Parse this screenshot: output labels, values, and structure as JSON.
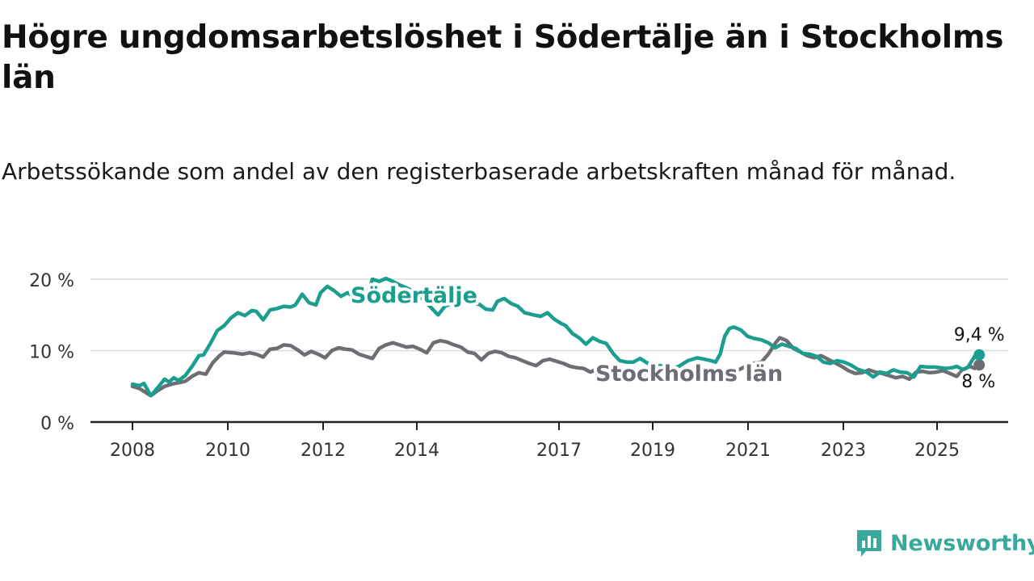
{
  "title": "Högre ungdomsarbetslöshet i Södertälje än i Stockholms län",
  "subtitle": "Arbetssökande som andel av den registerbaserade arbetskraften månad för månad.",
  "brand": {
    "name": "Newsworthy",
    "icon": "newsworthy-logo-icon",
    "color": "#3aa89a"
  },
  "chart_data": {
    "type": "line",
    "ylim": [
      0,
      20
    ],
    "xlim": [
      2008,
      2025.9
    ],
    "y_ticks": [
      {
        "value": 0,
        "label": "0 %"
      },
      {
        "value": 10,
        "label": "10 %"
      },
      {
        "value": 20,
        "label": "20 %"
      }
    ],
    "x_ticks": [
      {
        "value": 2008,
        "label": "2008"
      },
      {
        "value": 2010,
        "label": "2010"
      },
      {
        "value": 2012,
        "label": "2012"
      },
      {
        "value": 2014,
        "label": "2014"
      },
      {
        "value": 2017,
        "label": "2017"
      },
      {
        "value": 2019,
        "label": "2019"
      },
      {
        "value": 2021,
        "label": "2021"
      },
      {
        "value": 2023,
        "label": "2023"
      },
      {
        "value": 2025,
        "label": "2025"
      }
    ],
    "grid": true,
    "series": [
      {
        "name": "Södertälje",
        "color": "#1b9e8f",
        "end_label": "9,4 %",
        "points": [
          [
            2008.0,
            5.3
          ],
          [
            2008.15,
            5.1
          ],
          [
            2008.25,
            5.4
          ],
          [
            2008.4,
            3.7
          ],
          [
            2008.55,
            4.8
          ],
          [
            2008.7,
            6.0
          ],
          [
            2008.8,
            5.6
          ],
          [
            2008.9,
            6.2
          ],
          [
            2009.0,
            5.8
          ],
          [
            2009.15,
            6.5
          ],
          [
            2009.3,
            7.8
          ],
          [
            2009.45,
            9.3
          ],
          [
            2009.55,
            9.4
          ],
          [
            2009.7,
            11.0
          ],
          [
            2009.85,
            12.8
          ],
          [
            2010.0,
            13.5
          ],
          [
            2010.15,
            14.6
          ],
          [
            2010.3,
            15.3
          ],
          [
            2010.45,
            14.9
          ],
          [
            2010.6,
            15.6
          ],
          [
            2010.7,
            15.5
          ],
          [
            2010.85,
            14.3
          ],
          [
            2011.0,
            15.7
          ],
          [
            2011.15,
            15.9
          ],
          [
            2011.3,
            16.2
          ],
          [
            2011.45,
            16.1
          ],
          [
            2011.55,
            16.4
          ],
          [
            2011.7,
            17.9
          ],
          [
            2011.85,
            16.7
          ],
          [
            2012.0,
            16.4
          ],
          [
            2012.1,
            18.1
          ],
          [
            2012.25,
            19.0
          ],
          [
            2012.4,
            18.4
          ],
          [
            2012.55,
            17.6
          ],
          [
            2012.7,
            18.1
          ],
          [
            2012.85,
            17.5
          ],
          [
            2013.0,
            18.4
          ],
          [
            2013.1,
            17.2
          ],
          [
            2013.25,
            20.0
          ],
          [
            2013.4,
            19.7
          ],
          [
            2013.55,
            20.1
          ],
          [
            2013.7,
            19.7
          ],
          [
            2013.85,
            19.2
          ],
          [
            2014.0,
            18.8
          ],
          [
            2014.2,
            18.2
          ],
          [
            2014.4,
            17.0
          ],
          [
            2014.55,
            16.0
          ],
          [
            2014.7,
            15.0
          ],
          [
            2014.85,
            16.2
          ],
          [
            2015.0,
            16.6
          ],
          [
            2015.15,
            16.9
          ],
          [
            2015.3,
            17.4
          ],
          [
            2015.45,
            16.6
          ],
          [
            2015.6,
            16.5
          ],
          [
            2015.75,
            15.8
          ],
          [
            2015.9,
            15.7
          ],
          [
            2016.0,
            16.9
          ],
          [
            2016.15,
            17.3
          ],
          [
            2016.3,
            16.6
          ],
          [
            2016.45,
            16.2
          ],
          [
            2016.6,
            15.3
          ],
          [
            2016.8,
            15.0
          ],
          [
            2016.95,
            14.8
          ],
          [
            2017.1,
            15.3
          ],
          [
            2017.25,
            14.4
          ],
          [
            2017.4,
            13.8
          ],
          [
            2017.5,
            13.5
          ],
          [
            2017.65,
            12.4
          ],
          [
            2017.8,
            11.8
          ],
          [
            2017.95,
            10.9
          ],
          [
            2018.1,
            11.8
          ],
          [
            2018.25,
            11.3
          ],
          [
            2018.4,
            11.0
          ],
          [
            2018.55,
            9.6
          ],
          [
            2018.7,
            8.6
          ],
          [
            2018.85,
            8.4
          ],
          [
            2019.0,
            8.4
          ],
          [
            2019.15,
            8.9
          ],
          [
            2019.3,
            8.3
          ],
          [
            2019.45,
            7.8
          ],
          [
            2019.6,
            7.9
          ],
          [
            2019.8,
            7.4
          ],
          [
            2020.0,
            7.8
          ],
          [
            2020.2,
            8.6
          ],
          [
            2020.4,
            9.0
          ],
          [
            2020.55,
            8.8
          ],
          [
            2020.7,
            8.6
          ],
          [
            2020.8,
            8.4
          ],
          [
            2020.9,
            9.5
          ],
          [
            2021.0,
            12.0
          ],
          [
            2021.1,
            13.1
          ],
          [
            2021.2,
            13.3
          ],
          [
            2021.35,
            12.9
          ],
          [
            2021.5,
            12.0
          ],
          [
            2021.65,
            11.7
          ],
          [
            2021.8,
            11.5
          ],
          [
            2021.95,
            11.1
          ],
          [
            2022.1,
            10.4
          ],
          [
            2022.25,
            10.9
          ],
          [
            2022.4,
            10.6
          ],
          [
            2022.55,
            10.3
          ],
          [
            2022.7,
            9.6
          ],
          [
            2022.85,
            9.5
          ],
          [
            2023.0,
            9.2
          ],
          [
            2023.15,
            8.4
          ],
          [
            2023.3,
            8.2
          ],
          [
            2023.45,
            8.6
          ],
          [
            2023.6,
            8.4
          ],
          [
            2023.75,
            8.0
          ],
          [
            2023.9,
            7.4
          ],
          [
            2024.1,
            7.0
          ],
          [
            2024.25,
            6.3
          ],
          [
            2024.4,
            7.0
          ],
          [
            2024.55,
            6.8
          ],
          [
            2024.7,
            7.3
          ],
          [
            2024.85,
            7.0
          ],
          [
            2025.0,
            6.9
          ],
          [
            2025.15,
            6.3
          ],
          [
            2025.3,
            7.8
          ],
          [
            2025.45,
            7.7
          ],
          [
            2025.6,
            7.7
          ],
          [
            2025.75,
            7.6
          ],
          [
            2025.85,
            7.5
          ],
          [
            2026.0,
            7.6
          ],
          [
            2026.1,
            7.8
          ],
          [
            2026.25,
            7.3
          ],
          [
            2026.35,
            7.7
          ],
          [
            2026.5,
            9.2
          ],
          [
            2026.6,
            9.4
          ]
        ]
      },
      {
        "name": "Stockholms län",
        "color": "#6d6d73",
        "end_label": "8 %",
        "points": [
          [
            2008.0,
            5.0
          ],
          [
            2008.15,
            4.7
          ],
          [
            2008.25,
            4.3
          ],
          [
            2008.4,
            3.7
          ],
          [
            2008.55,
            4.4
          ],
          [
            2008.7,
            5.0
          ],
          [
            2008.85,
            5.3
          ],
          [
            2009.0,
            5.5
          ],
          [
            2009.15,
            5.7
          ],
          [
            2009.3,
            6.4
          ],
          [
            2009.45,
            6.9
          ],
          [
            2009.6,
            6.7
          ],
          [
            2009.75,
            8.3
          ],
          [
            2009.9,
            9.3
          ],
          [
            2010.0,
            9.8
          ],
          [
            2010.2,
            9.7
          ],
          [
            2010.4,
            9.5
          ],
          [
            2010.55,
            9.7
          ],
          [
            2010.7,
            9.5
          ],
          [
            2010.85,
            9.1
          ],
          [
            2011.0,
            10.2
          ],
          [
            2011.15,
            10.3
          ],
          [
            2011.3,
            10.8
          ],
          [
            2011.45,
            10.7
          ],
          [
            2011.6,
            10.1
          ],
          [
            2011.75,
            9.4
          ],
          [
            2011.9,
            9.9
          ],
          [
            2012.05,
            9.5
          ],
          [
            2012.2,
            9.0
          ],
          [
            2012.35,
            10.0
          ],
          [
            2012.5,
            10.4
          ],
          [
            2012.65,
            10.2
          ],
          [
            2012.8,
            10.1
          ],
          [
            2012.95,
            9.5
          ],
          [
            2013.1,
            9.2
          ],
          [
            2013.25,
            8.9
          ],
          [
            2013.4,
            10.3
          ],
          [
            2013.55,
            10.8
          ],
          [
            2013.7,
            11.1
          ],
          [
            2013.85,
            10.8
          ],
          [
            2014.0,
            10.5
          ],
          [
            2014.15,
            10.6
          ],
          [
            2014.3,
            10.2
          ],
          [
            2014.45,
            9.7
          ],
          [
            2014.6,
            11.1
          ],
          [
            2014.75,
            11.4
          ],
          [
            2014.9,
            11.2
          ],
          [
            2015.05,
            10.8
          ],
          [
            2015.2,
            10.5
          ],
          [
            2015.35,
            9.8
          ],
          [
            2015.5,
            9.6
          ],
          [
            2015.65,
            8.7
          ],
          [
            2015.8,
            9.6
          ],
          [
            2015.95,
            9.9
          ],
          [
            2016.1,
            9.7
          ],
          [
            2016.25,
            9.2
          ],
          [
            2016.4,
            9.0
          ],
          [
            2016.55,
            8.6
          ],
          [
            2016.7,
            8.2
          ],
          [
            2016.85,
            7.9
          ],
          [
            2017.0,
            8.6
          ],
          [
            2017.15,
            8.8
          ],
          [
            2017.3,
            8.5
          ],
          [
            2017.45,
            8.2
          ],
          [
            2017.6,
            7.8
          ],
          [
            2017.75,
            7.6
          ],
          [
            2017.9,
            7.5
          ],
          [
            2018.05,
            7.0
          ],
          [
            2018.2,
            7.4
          ],
          [
            2018.35,
            7.6
          ],
          [
            2018.5,
            7.3
          ],
          [
            2018.65,
            7.1
          ],
          [
            2018.8,
            6.8
          ],
          [
            2018.95,
            6.9
          ],
          [
            2019.1,
            6.6
          ],
          [
            2019.25,
            6.4
          ],
          [
            2019.4,
            6.8
          ],
          [
            2019.55,
            7.0
          ],
          [
            2019.7,
            7.1
          ],
          [
            2019.85,
            6.9
          ],
          [
            2020.0,
            6.7
          ],
          [
            2020.2,
            6.5
          ],
          [
            2020.4,
            6.2
          ],
          [
            2020.6,
            6.0
          ],
          [
            2020.8,
            6.0
          ],
          [
            2021.0,
            6.5
          ],
          [
            2021.2,
            7.0
          ],
          [
            2021.4,
            7.6
          ],
          [
            2021.6,
            8.2
          ],
          [
            2021.8,
            8.4
          ],
          [
            2021.95,
            9.5
          ],
          [
            2022.1,
            11.0
          ],
          [
            2022.2,
            11.8
          ],
          [
            2022.35,
            11.4
          ],
          [
            2022.5,
            10.3
          ],
          [
            2022.65,
            9.8
          ],
          [
            2022.8,
            9.3
          ],
          [
            2022.95,
            9.0
          ],
          [
            2023.1,
            9.3
          ],
          [
            2023.25,
            8.8
          ],
          [
            2023.4,
            8.3
          ],
          [
            2023.55,
            7.8
          ],
          [
            2023.7,
            7.2
          ],
          [
            2023.85,
            6.8
          ],
          [
            2024.0,
            6.9
          ],
          [
            2024.15,
            7.3
          ],
          [
            2024.3,
            7.0
          ],
          [
            2024.45,
            6.8
          ],
          [
            2024.6,
            6.5
          ],
          [
            2024.75,
            6.2
          ],
          [
            2024.9,
            6.4
          ],
          [
            2025.05,
            6.0
          ],
          [
            2025.2,
            7.0
          ],
          [
            2025.35,
            7.1
          ],
          [
            2025.5,
            6.9
          ],
          [
            2025.65,
            7.0
          ],
          [
            2025.8,
            7.2
          ],
          [
            2025.95,
            6.8
          ],
          [
            2026.1,
            6.4
          ],
          [
            2026.25,
            7.4
          ],
          [
            2026.4,
            7.8
          ],
          [
            2026.5,
            7.5
          ],
          [
            2026.6,
            8.0
          ]
        ]
      }
    ]
  }
}
